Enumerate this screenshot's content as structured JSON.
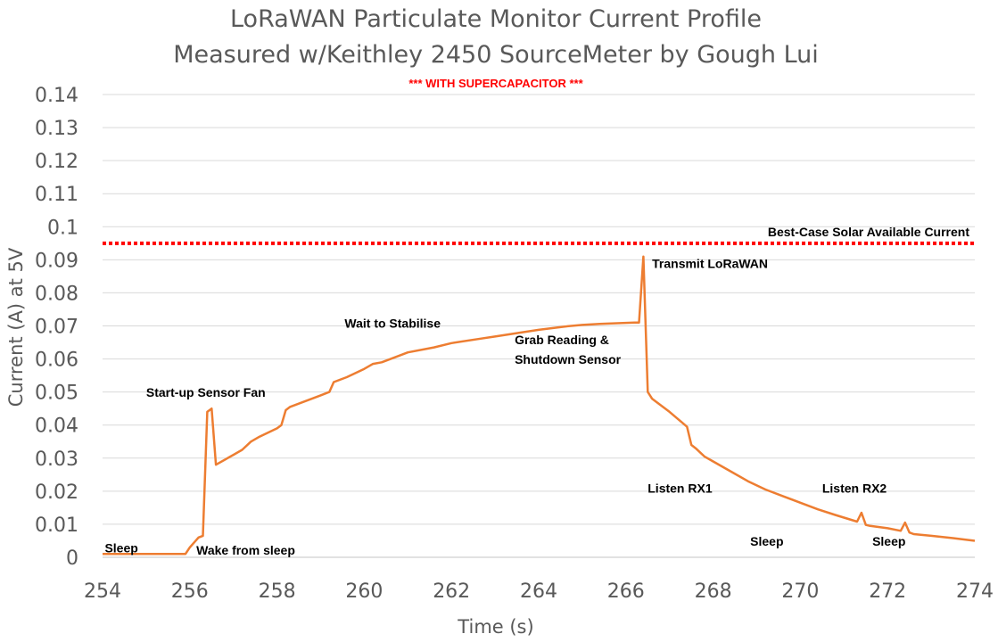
{
  "chart_data": {
    "type": "line",
    "title": "LoRaWAN Particulate Monitor Current Profile",
    "title_line2": "Measured w/Keithley 2450 SourceMeter by Gough Lui",
    "subtitle": "*** WITH SUPERCAPACITOR ***",
    "xlabel": "Time (s)",
    "ylabel": "Current (A) at 5V",
    "xlim": [
      254,
      274
    ],
    "ylim": [
      0,
      0.14
    ],
    "x_ticks": [
      "254",
      "256",
      "258",
      "260",
      "262",
      "264",
      "266",
      "268",
      "270",
      "272",
      "274"
    ],
    "y_ticks": [
      "0",
      "0.01",
      "0.02",
      "0.03",
      "0.04",
      "0.05",
      "0.06",
      "0.07",
      "0.08",
      "0.09",
      "0.1",
      "0.11",
      "0.12",
      "0.13",
      "0.14"
    ],
    "grid": "horizontal",
    "line_color": "#ed7d31",
    "reference_color": "#ff0000",
    "series": [
      {
        "x": [
          254.0,
          255.9,
          256.0,
          256.2,
          256.3,
          256.4,
          256.5,
          256.6,
          257.0,
          257.2,
          257.4,
          257.6,
          258.0,
          258.1,
          258.2,
          258.3,
          258.6,
          259.0,
          259.2,
          259.3,
          259.6,
          260.0,
          260.2,
          260.4,
          260.8,
          261.0,
          261.6,
          262.0,
          262.6,
          263.0,
          263.6,
          264.0,
          264.6,
          265.0,
          265.4,
          265.8,
          266.2,
          266.3,
          266.4,
          266.5,
          266.6,
          266.8,
          267.0,
          267.4,
          267.5,
          267.6,
          267.8,
          268.0,
          268.4,
          268.8,
          269.2,
          269.6,
          270.0,
          270.4,
          270.8,
          271.3,
          271.4,
          271.5,
          271.6,
          272.0,
          272.3,
          272.4,
          272.5,
          272.6,
          273.0,
          273.5,
          274.0
        ],
        "values": [
          0.001,
          0.001,
          0.003,
          0.006,
          0.0065,
          0.044,
          0.045,
          0.028,
          0.031,
          0.0325,
          0.035,
          0.0365,
          0.039,
          0.04,
          0.0445,
          0.0455,
          0.047,
          0.049,
          0.05,
          0.053,
          0.0545,
          0.057,
          0.0585,
          0.059,
          0.061,
          0.062,
          0.0635,
          0.0648,
          0.066,
          0.0668,
          0.068,
          0.0688,
          0.0698,
          0.0703,
          0.0706,
          0.0708,
          0.071,
          0.071,
          0.091,
          0.05,
          0.048,
          0.046,
          0.044,
          0.0395,
          0.034,
          0.033,
          0.0305,
          0.029,
          0.026,
          0.023,
          0.0205,
          0.0185,
          0.0165,
          0.0145,
          0.0128,
          0.0108,
          0.0135,
          0.0098,
          0.0095,
          0.0088,
          0.008,
          0.0105,
          0.0075,
          0.007,
          0.0065,
          0.0058,
          0.005
        ]
      }
    ],
    "reference_line": {
      "value": 0.095,
      "label": "Best-Case Solar Available Current"
    },
    "annotations": [
      {
        "text": "Sleep",
        "x": 254.05,
        "y": 0.0015
      },
      {
        "text": "Wake from sleep",
        "x": 256.15,
        "y": 0.0008
      },
      {
        "text": "Start-up Sensor Fan",
        "x": 255.0,
        "y": 0.0485
      },
      {
        "text": "Wait to Stabilise",
        "x": 259.55,
        "y": 0.0695
      },
      {
        "text": "Grab Reading &",
        "x": 263.45,
        "y": 0.0645
      },
      {
        "text": "Shutdown Sensor",
        "x": 263.45,
        "y": 0.0585
      },
      {
        "text": "Transmit LoRaWAN",
        "x": 266.6,
        "y": 0.0875
      },
      {
        "text": "Listen RX1",
        "x": 266.5,
        "y": 0.0195
      },
      {
        "text": "Listen RX2",
        "x": 270.5,
        "y": 0.0195
      },
      {
        "text": "Sleep",
        "x": 268.85,
        "y": 0.0035
      },
      {
        "text": "Sleep",
        "x": 271.65,
        "y": 0.0035
      }
    ]
  }
}
